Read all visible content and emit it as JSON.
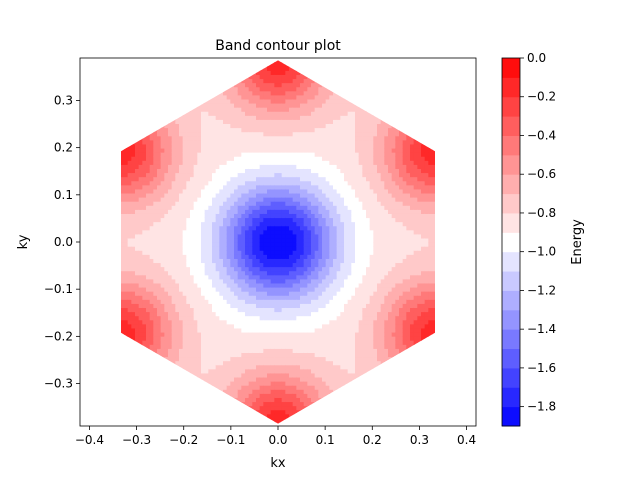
{
  "chart_data": {
    "type": "heatmap",
    "subtype": "filled-contour",
    "title": "Band contour plot",
    "xlabel": "kx",
    "ylabel": "ky",
    "xlim": [
      -0.42,
      0.42
    ],
    "ylim": [
      -0.39,
      0.39
    ],
    "xticks": [
      -0.4,
      -0.3,
      -0.2,
      -0.1,
      0.0,
      0.1,
      0.2,
      0.3,
      0.4
    ],
    "yticks": [
      -0.3,
      -0.2,
      -0.1,
      0.0,
      0.1,
      0.2,
      0.3
    ],
    "xtick_labels": [
      "−0.4",
      "−0.3",
      "−0.2",
      "−0.1",
      "0.0",
      "0.1",
      "0.2",
      "0.3",
      "0.4"
    ],
    "ytick_labels": [
      "−0.3",
      "−0.2",
      "−0.1",
      "0.0",
      "0.1",
      "0.2",
      "0.3"
    ],
    "domain": "hexagonal Brillouin zone",
    "hexagon_vertices": [
      [
        0.0,
        0.385
      ],
      [
        0.333,
        0.1925
      ],
      [
        0.333,
        -0.1925
      ],
      [
        0.0,
        -0.385
      ],
      [
        -0.333,
        -0.1925
      ],
      [
        -0.333,
        0.1925
      ]
    ],
    "minimum": {
      "x": 0.0,
      "y": 0.0,
      "value": -1.9
    },
    "maxima": [
      [
        0.0,
        0.385
      ],
      [
        0.333,
        0.1925
      ],
      [
        0.333,
        -0.1925
      ],
      [
        0.0,
        -0.385
      ],
      [
        -0.333,
        -0.1925
      ],
      [
        -0.333,
        0.1925
      ]
    ],
    "grid": false,
    "colorbar": {
      "label": "Energy",
      "colormap": "bwr",
      "range": [
        -1.9,
        0.0
      ],
      "ticks": [
        0.0,
        -0.2,
        -0.4,
        -0.6,
        -0.8,
        -1.0,
        -1.2,
        -1.4,
        -1.6,
        -1.8
      ],
      "tick_labels": [
        "0.0",
        "−0.2",
        "−0.4",
        "−0.6",
        "−0.8",
        "−1.0",
        "−1.2",
        "−1.4",
        "−1.6",
        "−1.8"
      ],
      "levels": [
        -1.9,
        -1.8,
        -1.7,
        -1.6,
        -1.5,
        -1.4,
        -1.3,
        -1.2,
        -1.1,
        -1.0,
        -0.9,
        -0.8,
        -0.7,
        -0.6,
        -0.5,
        -0.4,
        -0.3,
        -0.2,
        -0.1,
        0.0
      ]
    }
  }
}
